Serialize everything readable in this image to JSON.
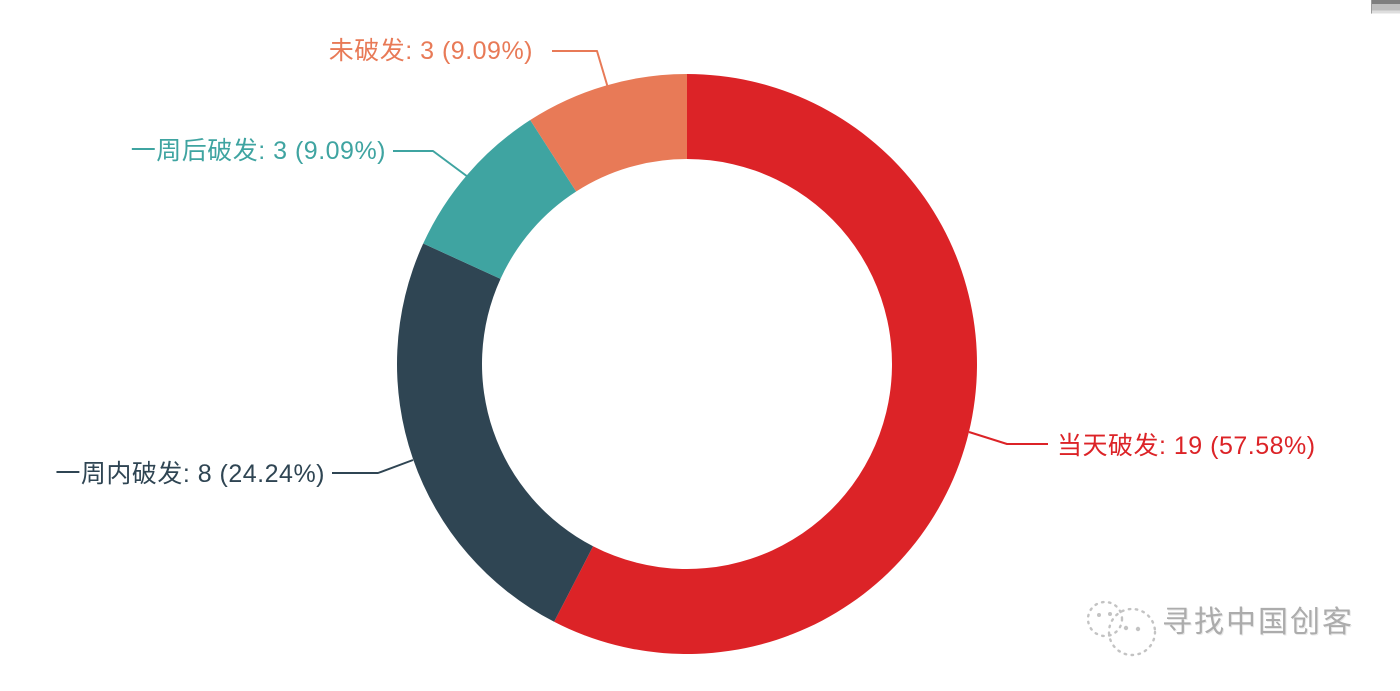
{
  "chart_data": {
    "type": "pie",
    "subtype": "donut",
    "title": "",
    "total": 33,
    "start_angle": "top (12 o'clock)",
    "direction": "clockwise",
    "legend_position": "callout-labels",
    "inner_radius_ratio": 0.71,
    "slices": [
      {
        "label": "当天破发",
        "value": 19,
        "pct": "57.58%",
        "display": "当天破发: 19 (57.58%)",
        "color": "#dc2327"
      },
      {
        "label": "一周内破发",
        "value": 8,
        "pct": "24.24%",
        "display": "一周内破发: 8 (24.24%)",
        "color": "#2f4553"
      },
      {
        "label": "一周后破发",
        "value": 3,
        "pct": "9.09%",
        "display": "一周后破发: 3 (9.09%)",
        "color": "#3fa4a1"
      },
      {
        "label": "未破发",
        "value": 3,
        "pct": "9.09%",
        "display": "未破发: 3 (9.09%)",
        "color": "#e87a57"
      }
    ]
  },
  "watermark": {
    "text": "寻找中国创客",
    "logo": "dotted-chat-bubbles-logo",
    "text_color": "#acacac",
    "logo_color": "#c3c3c3"
  },
  "background_color": "#ffffff"
}
